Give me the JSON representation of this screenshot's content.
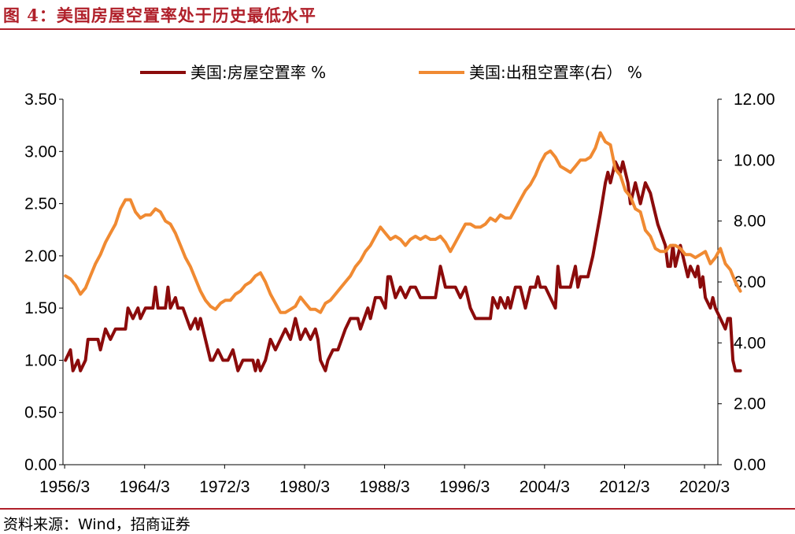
{
  "header": {
    "title": "图 4：美国房屋空置率处于历史最低水平"
  },
  "footer": {
    "source": "资料来源：Wind，招商证券"
  },
  "chart_data": {
    "type": "line",
    "title": "",
    "x_tick_labels": [
      "1956/3",
      "1964/3",
      "1972/3",
      "1980/3",
      "1988/3",
      "1996/3",
      "2004/3",
      "2012/3",
      "2020/3"
    ],
    "x_range": [
      1956.0,
      2021.5
    ],
    "y_left_range": [
      0,
      3.5
    ],
    "y_left_ticks": [
      "0.00",
      "0.50",
      "1.00",
      "1.50",
      "2.00",
      "2.50",
      "3.00",
      "3.50"
    ],
    "y_right_range": [
      0,
      12
    ],
    "y_right_ticks": [
      "0.00",
      "2.00",
      "4.00",
      "6.00",
      "8.00",
      "10.00",
      "12.00"
    ],
    "legend_position": "top",
    "grid": false,
    "series": [
      {
        "name": "美国:房屋空置率 %",
        "axis": "left",
        "color": "#8b0b0b",
        "points": [
          [
            1956.25,
            1.0
          ],
          [
            1956.75,
            1.1
          ],
          [
            1957.0,
            0.9
          ],
          [
            1957.5,
            1.0
          ],
          [
            1957.75,
            0.9
          ],
          [
            1958.25,
            1.0
          ],
          [
            1958.5,
            1.2
          ],
          [
            1959.5,
            1.2
          ],
          [
            1959.75,
            1.1
          ],
          [
            1960.25,
            1.3
          ],
          [
            1960.75,
            1.2
          ],
          [
            1961.25,
            1.3
          ],
          [
            1962.25,
            1.3
          ],
          [
            1962.5,
            1.5
          ],
          [
            1963.0,
            1.4
          ],
          [
            1963.5,
            1.5
          ],
          [
            1963.75,
            1.4
          ],
          [
            1964.25,
            1.5
          ],
          [
            1965.0,
            1.5
          ],
          [
            1965.25,
            1.7
          ],
          [
            1965.5,
            1.5
          ],
          [
            1966.25,
            1.5
          ],
          [
            1966.5,
            1.7
          ],
          [
            1966.75,
            1.5
          ],
          [
            1967.25,
            1.6
          ],
          [
            1967.5,
            1.5
          ],
          [
            1968.0,
            1.5
          ],
          [
            1968.75,
            1.3
          ],
          [
            1969.25,
            1.4
          ],
          [
            1969.5,
            1.3
          ],
          [
            1969.75,
            1.4
          ],
          [
            1970.25,
            1.2
          ],
          [
            1970.75,
            1.0
          ],
          [
            1971.0,
            1.0
          ],
          [
            1971.5,
            1.1
          ],
          [
            1972.0,
            1.0
          ],
          [
            1972.5,
            1.0
          ],
          [
            1973.0,
            1.1
          ],
          [
            1973.5,
            0.9
          ],
          [
            1974.0,
            1.0
          ],
          [
            1975.0,
            1.0
          ],
          [
            1975.25,
            0.9
          ],
          [
            1975.5,
            1.0
          ],
          [
            1975.75,
            0.9
          ],
          [
            1976.25,
            1.0
          ],
          [
            1976.75,
            1.2
          ],
          [
            1977.25,
            1.1
          ],
          [
            1977.75,
            1.2
          ],
          [
            1978.25,
            1.3
          ],
          [
            1978.75,
            1.2
          ],
          [
            1979.25,
            1.4
          ],
          [
            1979.75,
            1.2
          ],
          [
            1980.25,
            1.3
          ],
          [
            1980.75,
            1.2
          ],
          [
            1981.25,
            1.3
          ],
          [
            1981.5,
            1.2
          ],
          [
            1981.75,
            1.0
          ],
          [
            1982.25,
            0.9
          ],
          [
            1982.5,
            1.0
          ],
          [
            1983.0,
            1.1
          ],
          [
            1983.5,
            1.1
          ],
          [
            1984.25,
            1.3
          ],
          [
            1984.75,
            1.4
          ],
          [
            1985.5,
            1.4
          ],
          [
            1985.75,
            1.3
          ],
          [
            1986.5,
            1.5
          ],
          [
            1986.75,
            1.4
          ],
          [
            1987.25,
            1.6
          ],
          [
            1987.75,
            1.6
          ],
          [
            1988.25,
            1.5
          ],
          [
            1988.5,
            1.8
          ],
          [
            1988.75,
            1.8
          ],
          [
            1989.25,
            1.6
          ],
          [
            1989.75,
            1.7
          ],
          [
            1990.25,
            1.6
          ],
          [
            1990.75,
            1.7
          ],
          [
            1991.25,
            1.7
          ],
          [
            1991.75,
            1.6
          ],
          [
            1993.25,
            1.6
          ],
          [
            1993.75,
            1.9
          ],
          [
            1994.25,
            1.7
          ],
          [
            1994.75,
            1.7
          ],
          [
            1995.25,
            1.7
          ],
          [
            1995.75,
            1.6
          ],
          [
            1996.25,
            1.7
          ],
          [
            1996.75,
            1.5
          ],
          [
            1997.25,
            1.4
          ],
          [
            1998.75,
            1.4
          ],
          [
            1999.0,
            1.6
          ],
          [
            1999.5,
            1.5
          ],
          [
            1999.75,
            1.6
          ],
          [
            2000.25,
            1.5
          ],
          [
            2000.5,
            1.6
          ],
          [
            2000.75,
            1.5
          ],
          [
            2001.25,
            1.7
          ],
          [
            2001.75,
            1.7
          ],
          [
            2002.25,
            1.5
          ],
          [
            2002.75,
            1.7
          ],
          [
            2003.25,
            1.7
          ],
          [
            2003.5,
            1.8
          ],
          [
            2003.75,
            1.7
          ],
          [
            2004.25,
            1.7
          ],
          [
            2004.75,
            1.6
          ],
          [
            2005.25,
            1.5
          ],
          [
            2005.5,
            1.9
          ],
          [
            2005.75,
            1.7
          ],
          [
            2006.25,
            1.7
          ],
          [
            2006.75,
            1.7
          ],
          [
            2007.25,
            1.9
          ],
          [
            2007.5,
            1.7
          ],
          [
            2007.75,
            1.8
          ],
          [
            2008.5,
            1.8
          ],
          [
            2009.0,
            2.0
          ],
          [
            2009.75,
            2.4
          ],
          [
            2010.25,
            2.7
          ],
          [
            2010.5,
            2.8
          ],
          [
            2010.75,
            2.7
          ],
          [
            2011.25,
            2.9
          ],
          [
            2011.75,
            2.8
          ],
          [
            2012.0,
            2.9
          ],
          [
            2012.5,
            2.7
          ],
          [
            2012.75,
            2.5
          ],
          [
            2013.25,
            2.7
          ],
          [
            2013.5,
            2.6
          ],
          [
            2013.75,
            2.5
          ],
          [
            2014.25,
            2.7
          ],
          [
            2014.75,
            2.6
          ],
          [
            2015.0,
            2.5
          ],
          [
            2015.5,
            2.3
          ],
          [
            2016.25,
            2.1
          ],
          [
            2016.5,
            1.9
          ],
          [
            2016.75,
            1.9
          ],
          [
            2017.0,
            2.1
          ],
          [
            2017.25,
            1.9
          ],
          [
            2017.5,
            2.0
          ],
          [
            2017.75,
            2.1
          ],
          [
            2018.25,
            1.9
          ],
          [
            2018.5,
            1.8
          ],
          [
            2018.75,
            1.9
          ],
          [
            2019.25,
            1.8
          ],
          [
            2019.5,
            1.9
          ],
          [
            2019.75,
            1.7
          ],
          [
            2020.0,
            1.8
          ],
          [
            2020.25,
            1.6
          ],
          [
            2020.75,
            1.5
          ],
          [
            2021.0,
            1.6
          ],
          [
            2021.25,
            1.5
          ],
          [
            2021.75,
            1.4
          ],
          [
            2022.25,
            1.3
          ],
          [
            2022.5,
            1.4
          ],
          [
            2022.75,
            1.4
          ],
          [
            2023.0,
            1.0
          ],
          [
            2023.25,
            0.9
          ],
          [
            2023.75,
            0.9
          ]
        ]
      },
      {
        "name": "美国:出租空置率(右） %",
        "axis": "right",
        "color": "#f08a32",
        "points": [
          [
            1956.25,
            6.2
          ],
          [
            1956.75,
            6.1
          ],
          [
            1957.25,
            5.9
          ],
          [
            1957.75,
            5.6
          ],
          [
            1958.25,
            5.8
          ],
          [
            1958.75,
            6.2
          ],
          [
            1959.25,
            6.6
          ],
          [
            1959.75,
            6.9
          ],
          [
            1960.25,
            7.3
          ],
          [
            1960.75,
            7.6
          ],
          [
            1961.25,
            7.9
          ],
          [
            1961.75,
            8.4
          ],
          [
            1962.25,
            8.7
          ],
          [
            1962.75,
            8.7
          ],
          [
            1963.25,
            8.3
          ],
          [
            1963.75,
            8.1
          ],
          [
            1964.25,
            8.2
          ],
          [
            1964.75,
            8.2
          ],
          [
            1965.25,
            8.4
          ],
          [
            1965.75,
            8.3
          ],
          [
            1966.25,
            8.0
          ],
          [
            1966.75,
            7.9
          ],
          [
            1967.25,
            7.6
          ],
          [
            1967.75,
            7.2
          ],
          [
            1968.25,
            6.8
          ],
          [
            1968.75,
            6.5
          ],
          [
            1969.25,
            6.1
          ],
          [
            1969.75,
            5.7
          ],
          [
            1970.25,
            5.4
          ],
          [
            1970.75,
            5.2
          ],
          [
            1971.25,
            5.1
          ],
          [
            1971.75,
            5.3
          ],
          [
            1972.25,
            5.4
          ],
          [
            1972.75,
            5.4
          ],
          [
            1973.25,
            5.6
          ],
          [
            1973.75,
            5.7
          ],
          [
            1974.25,
            5.9
          ],
          [
            1974.75,
            6.0
          ],
          [
            1975.25,
            6.2
          ],
          [
            1975.75,
            6.3
          ],
          [
            1976.25,
            6.0
          ],
          [
            1976.75,
            5.6
          ],
          [
            1977.25,
            5.3
          ],
          [
            1977.75,
            5.0
          ],
          [
            1978.25,
            5.0
          ],
          [
            1978.75,
            5.1
          ],
          [
            1979.25,
            5.2
          ],
          [
            1979.75,
            5.5
          ],
          [
            1980.25,
            5.3
          ],
          [
            1980.75,
            5.1
          ],
          [
            1981.25,
            5.1
          ],
          [
            1981.75,
            5.0
          ],
          [
            1982.25,
            5.3
          ],
          [
            1982.75,
            5.4
          ],
          [
            1983.25,
            5.6
          ],
          [
            1983.75,
            5.8
          ],
          [
            1984.25,
            6.0
          ],
          [
            1984.75,
            6.2
          ],
          [
            1985.25,
            6.5
          ],
          [
            1985.75,
            6.7
          ],
          [
            1986.25,
            7.0
          ],
          [
            1986.75,
            7.2
          ],
          [
            1987.25,
            7.5
          ],
          [
            1987.75,
            7.8
          ],
          [
            1988.25,
            7.6
          ],
          [
            1988.75,
            7.4
          ],
          [
            1989.25,
            7.5
          ],
          [
            1989.75,
            7.4
          ],
          [
            1990.25,
            7.2
          ],
          [
            1990.75,
            7.4
          ],
          [
            1991.25,
            7.5
          ],
          [
            1991.75,
            7.4
          ],
          [
            1992.25,
            7.5
          ],
          [
            1992.75,
            7.4
          ],
          [
            1993.25,
            7.4
          ],
          [
            1993.75,
            7.5
          ],
          [
            1994.25,
            7.3
          ],
          [
            1994.75,
            7.0
          ],
          [
            1995.25,
            7.3
          ],
          [
            1995.75,
            7.6
          ],
          [
            1996.25,
            7.9
          ],
          [
            1996.75,
            7.9
          ],
          [
            1997.25,
            7.8
          ],
          [
            1997.75,
            7.8
          ],
          [
            1998.25,
            7.9
          ],
          [
            1998.75,
            8.1
          ],
          [
            1999.25,
            8.0
          ],
          [
            1999.75,
            8.2
          ],
          [
            2000.25,
            8.1
          ],
          [
            2000.75,
            8.1
          ],
          [
            2001.25,
            8.4
          ],
          [
            2001.75,
            8.7
          ],
          [
            2002.25,
            9.0
          ],
          [
            2002.75,
            9.2
          ],
          [
            2003.25,
            9.5
          ],
          [
            2003.75,
            9.9
          ],
          [
            2004.25,
            10.2
          ],
          [
            2004.75,
            10.3
          ],
          [
            2005.25,
            10.1
          ],
          [
            2005.75,
            9.8
          ],
          [
            2006.25,
            9.7
          ],
          [
            2006.75,
            9.6
          ],
          [
            2007.25,
            9.8
          ],
          [
            2007.75,
            10.0
          ],
          [
            2008.25,
            10.0
          ],
          [
            2008.75,
            10.1
          ],
          [
            2009.25,
            10.4
          ],
          [
            2009.75,
            10.9
          ],
          [
            2010.25,
            10.6
          ],
          [
            2010.75,
            10.5
          ],
          [
            2011.25,
            9.7
          ],
          [
            2011.75,
            9.5
          ],
          [
            2012.25,
            9.0
          ],
          [
            2012.75,
            8.8
          ],
          [
            2013.25,
            8.4
          ],
          [
            2013.75,
            8.3
          ],
          [
            2014.25,
            7.7
          ],
          [
            2014.75,
            7.5
          ],
          [
            2015.25,
            7.1
          ],
          [
            2015.75,
            7.0
          ],
          [
            2016.25,
            7.0
          ],
          [
            2016.75,
            7.2
          ],
          [
            2017.25,
            7.2
          ],
          [
            2017.75,
            7.1
          ],
          [
            2018.25,
            6.9
          ],
          [
            2018.75,
            6.9
          ],
          [
            2019.25,
            6.8
          ],
          [
            2019.75,
            6.9
          ],
          [
            2020.25,
            7.0
          ],
          [
            2020.75,
            6.6
          ],
          [
            2021.25,
            6.8
          ],
          [
            2021.75,
            7.1
          ],
          [
            2022.25,
            6.6
          ],
          [
            2022.75,
            6.4
          ],
          [
            2023.25,
            6.0
          ],
          [
            2023.75,
            5.7
          ]
        ]
      }
    ]
  }
}
